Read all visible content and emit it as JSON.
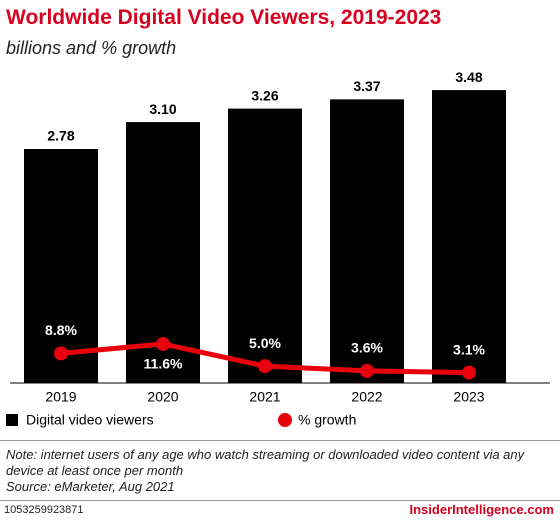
{
  "chart_data": {
    "type": "bar",
    "title": "Worldwide Digital Video Viewers, 2019-2023",
    "subtitle": "billions and % growth",
    "categories": [
      "2019",
      "2020",
      "2021",
      "2022",
      "2023"
    ],
    "series": [
      {
        "name": "Digital video viewers",
        "type": "bar",
        "color": "#000000",
        "values": [
          2.78,
          3.1,
          3.26,
          3.37,
          3.48
        ],
        "value_labels": [
          "2.78",
          "3.10",
          "3.26",
          "3.37",
          "3.48"
        ]
      },
      {
        "name": "% growth",
        "type": "line",
        "axis": "y2",
        "color": "#e8000d",
        "values": [
          8.8,
          11.6,
          5.0,
          3.6,
          3.1
        ],
        "value_labels": [
          "8.8%",
          "11.6%",
          "5.0%",
          "3.6%",
          "3.1%"
        ]
      }
    ],
    "ylim": [
      0,
      3.6
    ],
    "y2lim": [
      0,
      90
    ],
    "grid": false,
    "legend": "bottom",
    "note": "Note: internet users of any age who watch streaming or downloaded video content via any device at least once per month",
    "source": "Source: eMarketer, Aug 2021",
    "chart_id": "1053259923871",
    "logo": "InsiderIntelligence.com"
  }
}
